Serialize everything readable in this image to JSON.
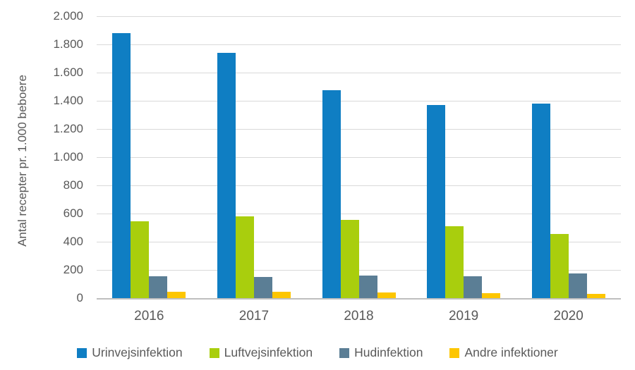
{
  "chart_data": {
    "type": "bar",
    "title": "",
    "xlabel": "",
    "ylabel": "Antal recepter pr. 1.000 beboere",
    "categories": [
      "2016",
      "2017",
      "2018",
      "2019",
      "2020"
    ],
    "series": [
      {
        "name": "Urinvejsinfektion",
        "color": "#0f7ec3",
        "values": [
          1880,
          1740,
          1475,
          1370,
          1380
        ]
      },
      {
        "name": "Luftvejsinfektion",
        "color": "#a9ce0d",
        "values": [
          545,
          580,
          555,
          510,
          455
        ]
      },
      {
        "name": "Hudinfektion",
        "color": "#5b7e95",
        "values": [
          155,
          150,
          160,
          155,
          175
        ]
      },
      {
        "name": "Andre infektioner",
        "color": "#fdc600",
        "values": [
          45,
          45,
          40,
          35,
          30
        ]
      }
    ],
    "ylim": [
      0,
      2000
    ],
    "ytick_step": 200,
    "ytick_labels": [
      "0",
      "200",
      "400",
      "600",
      "800",
      "1.000",
      "1.200",
      "1.400",
      "1.600",
      "1.800",
      "2.000"
    ],
    "grid": true,
    "legend_position": "bottom",
    "colors": {
      "gridline": "#d9d9d9",
      "axis_line": "#bfbfbf",
      "text": "#595959",
      "background": "#ffffff"
    }
  }
}
